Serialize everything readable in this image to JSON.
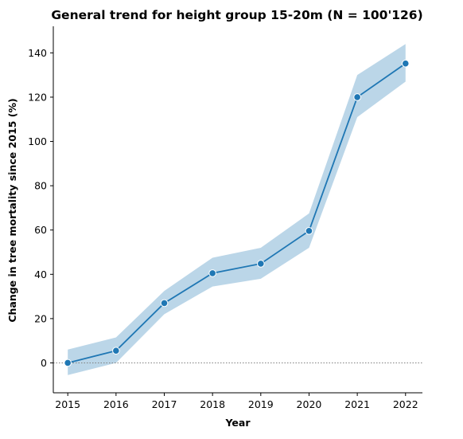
{
  "chart_data": {
    "type": "line",
    "title": "General trend for height group 15-20m  (N = 100'126)",
    "xlabel": "Year",
    "ylabel": "Change in tree mortality since 2015 (%)",
    "x": [
      2015,
      2016,
      2017,
      2018,
      2019,
      2020,
      2021,
      2022
    ],
    "x_tick_labels": [
      "2015",
      "2016",
      "2017",
      "2018",
      "2019",
      "2020",
      "2021",
      "2022"
    ],
    "y_ticks": [
      0,
      20,
      40,
      60,
      80,
      100,
      120,
      140
    ],
    "y_tick_labels": [
      "0",
      "20",
      "40",
      "60",
      "80",
      "100",
      "120",
      "140"
    ],
    "ylim": [
      -13.5,
      152
    ],
    "xlim": [
      2014.7,
      2022.35
    ],
    "series": [
      {
        "values": [
          0,
          5.5,
          27,
          40.5,
          44.8,
          59.6,
          120,
          135.2
        ],
        "ci_lower": [
          -5.5,
          0,
          22,
          34.5,
          38,
          52,
          111,
          127
        ],
        "ci_upper": [
          6,
          11.5,
          32.5,
          47.5,
          52,
          67.5,
          130,
          144
        ]
      }
    ],
    "reference_line": 0,
    "line_color": "#1f77b4",
    "band_color": "#1f77b4",
    "band_opacity": 0.3,
    "reference_line_color": "#808080",
    "grid": false,
    "legend": "none"
  }
}
